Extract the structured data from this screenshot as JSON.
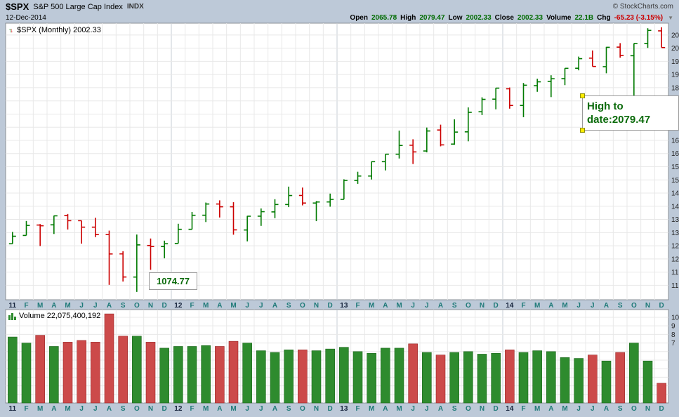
{
  "header": {
    "symbol": "$SPX",
    "name": "S&P 500 Large Cap Index",
    "exchange": "INDX",
    "copyright": "© StockCharts.com",
    "date": "12-Dec-2014",
    "quote": {
      "open_label": "Open",
      "open": "2065.78",
      "high_label": "High",
      "high": "2079.47",
      "low_label": "Low",
      "low": "2002.33",
      "close_label": "Close",
      "close": "2002.33",
      "volume_label": "Volume",
      "volume": "22.1B",
      "chg_label": "Chg",
      "chg": "-65.23 (-3.15%)"
    }
  },
  "icons": {
    "collapse": "▼",
    "up_arrow": "↑",
    "down_arrow": "↓"
  },
  "price_panel": {
    "legend": "$SPX (Monthly) 2002.33",
    "annotation_low": "1074.77",
    "annotation_high_line1": "High to",
    "annotation_high_line2": "date:2079.47"
  },
  "volume_panel": {
    "legend": "Volume 22,075,400,192"
  },
  "chart_data": {
    "type": "ohlc",
    "title": "$SPX (Monthly)",
    "symbol": "$SPX",
    "timeframe": "Monthly",
    "range": "Jan 2011 - Dec 2014",
    "last_close": 2002.33,
    "high_to_date": 2079.47,
    "low_marked": 1074.77,
    "legend_grid": "on",
    "x_labels": [
      "11",
      "F",
      "M",
      "A",
      "M",
      "J",
      "J",
      "A",
      "S",
      "O",
      "N",
      "D",
      "12",
      "F",
      "M",
      "A",
      "M",
      "J",
      "J",
      "A",
      "S",
      "O",
      "N",
      "D",
      "13",
      "F",
      "M",
      "A",
      "M",
      "J",
      "J",
      "A",
      "S",
      "O",
      "N",
      "D",
      "14",
      "F",
      "M",
      "A",
      "M",
      "J",
      "J",
      "A",
      "S",
      "O",
      "N",
      "D"
    ],
    "ohlc": [
      [
        1257.62,
        1302.67,
        1257.62,
        1286.12
      ],
      [
        1289.14,
        1344.07,
        1289.14,
        1327.22
      ],
      [
        1328.64,
        1332.28,
        1249.05,
        1325.83
      ],
      [
        1329.48,
        1364.56,
        1294.7,
        1363.61
      ],
      [
        1365.21,
        1370.58,
        1311.8,
        1345.2
      ],
      [
        1345.2,
        1345.2,
        1258.07,
        1320.64
      ],
      [
        1320.64,
        1356.48,
        1282.86,
        1292.28
      ],
      [
        1292.59,
        1307.38,
        1101.54,
        1218.89
      ],
      [
        1219.12,
        1229.29,
        1114.22,
        1131.42
      ],
      [
        1131.21,
        1292.66,
        1074.77,
        1253.3
      ],
      [
        1251.0,
        1277.55,
        1158.66,
        1246.96
      ],
      [
        1246.91,
        1269.37,
        1202.37,
        1257.6
      ],
      [
        1258.86,
        1333.47,
        1258.86,
        1312.41
      ],
      [
        1312.45,
        1378.04,
        1312.45,
        1365.68
      ],
      [
        1365.9,
        1414.0,
        1340.03,
        1408.47
      ],
      [
        1408.47,
        1422.38,
        1357.38,
        1397.91
      ],
      [
        1397.86,
        1415.32,
        1291.98,
        1310.33
      ],
      [
        1309.87,
        1363.46,
        1266.74,
        1362.16
      ],
      [
        1362.33,
        1391.74,
        1325.41,
        1379.32
      ],
      [
        1378.53,
        1426.68,
        1354.65,
        1406.58
      ],
      [
        1406.54,
        1474.51,
        1396.56,
        1440.67
      ],
      [
        1440.9,
        1470.96,
        1403.28,
        1412.16
      ],
      [
        1412.2,
        1419.7,
        1343.35,
        1416.18
      ],
      [
        1416.34,
        1448.0,
        1398.23,
        1426.19
      ],
      [
        1426.19,
        1502.27,
        1426.19,
        1498.11
      ],
      [
        1498.11,
        1530.94,
        1485.01,
        1514.68
      ],
      [
        1514.68,
        1570.28,
        1501.48,
        1569.19
      ],
      [
        1569.18,
        1597.57,
        1536.03,
        1597.57
      ],
      [
        1597.55,
        1687.18,
        1581.28,
        1630.74
      ],
      [
        1631.71,
        1654.19,
        1560.33,
        1606.28
      ],
      [
        1609.78,
        1698.78,
        1604.57,
        1685.73
      ],
      [
        1689.42,
        1709.67,
        1627.47,
        1632.97
      ],
      [
        1635.95,
        1729.86,
        1633.41,
        1681.55
      ],
      [
        1682.41,
        1775.22,
        1646.47,
        1756.54
      ],
      [
        1758.7,
        1813.55,
        1746.2,
        1805.81
      ],
      [
        1806.55,
        1849.44,
        1767.99,
        1848.36
      ],
      [
        1845.86,
        1850.84,
        1770.45,
        1782.59
      ],
      [
        1782.68,
        1867.92,
        1737.92,
        1859.45
      ],
      [
        1857.68,
        1883.97,
        1834.44,
        1872.34
      ],
      [
        1873.96,
        1897.28,
        1814.36,
        1883.95
      ],
      [
        1884.39,
        1924.03,
        1859.79,
        1923.57
      ],
      [
        1923.87,
        1968.17,
        1915.98,
        1960.23
      ],
      [
        1962.29,
        1991.39,
        1930.67,
        1930.67
      ],
      [
        1929.8,
        2005.04,
        1904.78,
        2003.37
      ],
      [
        2004.07,
        2019.26,
        1964.04,
        1972.29
      ],
      [
        1971.44,
        2018.19,
        1820.66,
        2018.05
      ],
      [
        2018.21,
        2075.76,
        2001.01,
        2067.56
      ],
      [
        2065.78,
        2079.47,
        2002.33,
        2002.33
      ]
    ],
    "volume": [
      7.7,
      7.0,
      7.9,
      6.6,
      7.1,
      7.3,
      7.1,
      10.4,
      7.8,
      7.8,
      7.1,
      6.4,
      6.6,
      6.6,
      6.7,
      6.6,
      7.2,
      7.0,
      6.1,
      5.9,
      6.2,
      6.2,
      6.1,
      6.3,
      6.5,
      6.0,
      5.8,
      6.4,
      6.4,
      6.9,
      5.9,
      5.6,
      5.9,
      6.0,
      5.7,
      5.8,
      6.2,
      5.9,
      6.1,
      6.0,
      5.3,
      5.2,
      5.6,
      4.9,
      5.9,
      7.0,
      4.9,
      2.3
    ],
    "price_axis": {
      "min": 1045,
      "max": 2095,
      "tick_step": 50,
      "tick_values": [
        1100,
        1150,
        1200,
        1250,
        1300,
        1350,
        1400,
        1450,
        1500,
        1550,
        1600,
        1650,
        1700,
        1750,
        1800,
        1850,
        1900,
        1950,
        2000,
        2050
      ],
      "tick_labels": [
        "11",
        "11",
        "12",
        "12",
        "13",
        "13",
        "14",
        "14",
        "15",
        "15",
        "16",
        "16",
        "17",
        "17",
        "18",
        "18",
        "19",
        "19",
        "20",
        "20"
      ]
    },
    "volume_axis": {
      "min": 0,
      "max": 10.9,
      "tick_values": [
        7,
        8,
        9,
        10
      ],
      "tick_labels": [
        "7",
        "8",
        "9",
        "10"
      ]
    },
    "colors": {
      "up": "#007a00",
      "down": "#cc0000",
      "vol_up": "#2e8b2e",
      "vol_down": "#cc4a4a",
      "vol_up_border": "#1b661b",
      "vol_down_border": "#992626",
      "annotation_text": "#0b6b0b",
      "handle": "#ffec00",
      "background": "#bdc9d8"
    }
  }
}
